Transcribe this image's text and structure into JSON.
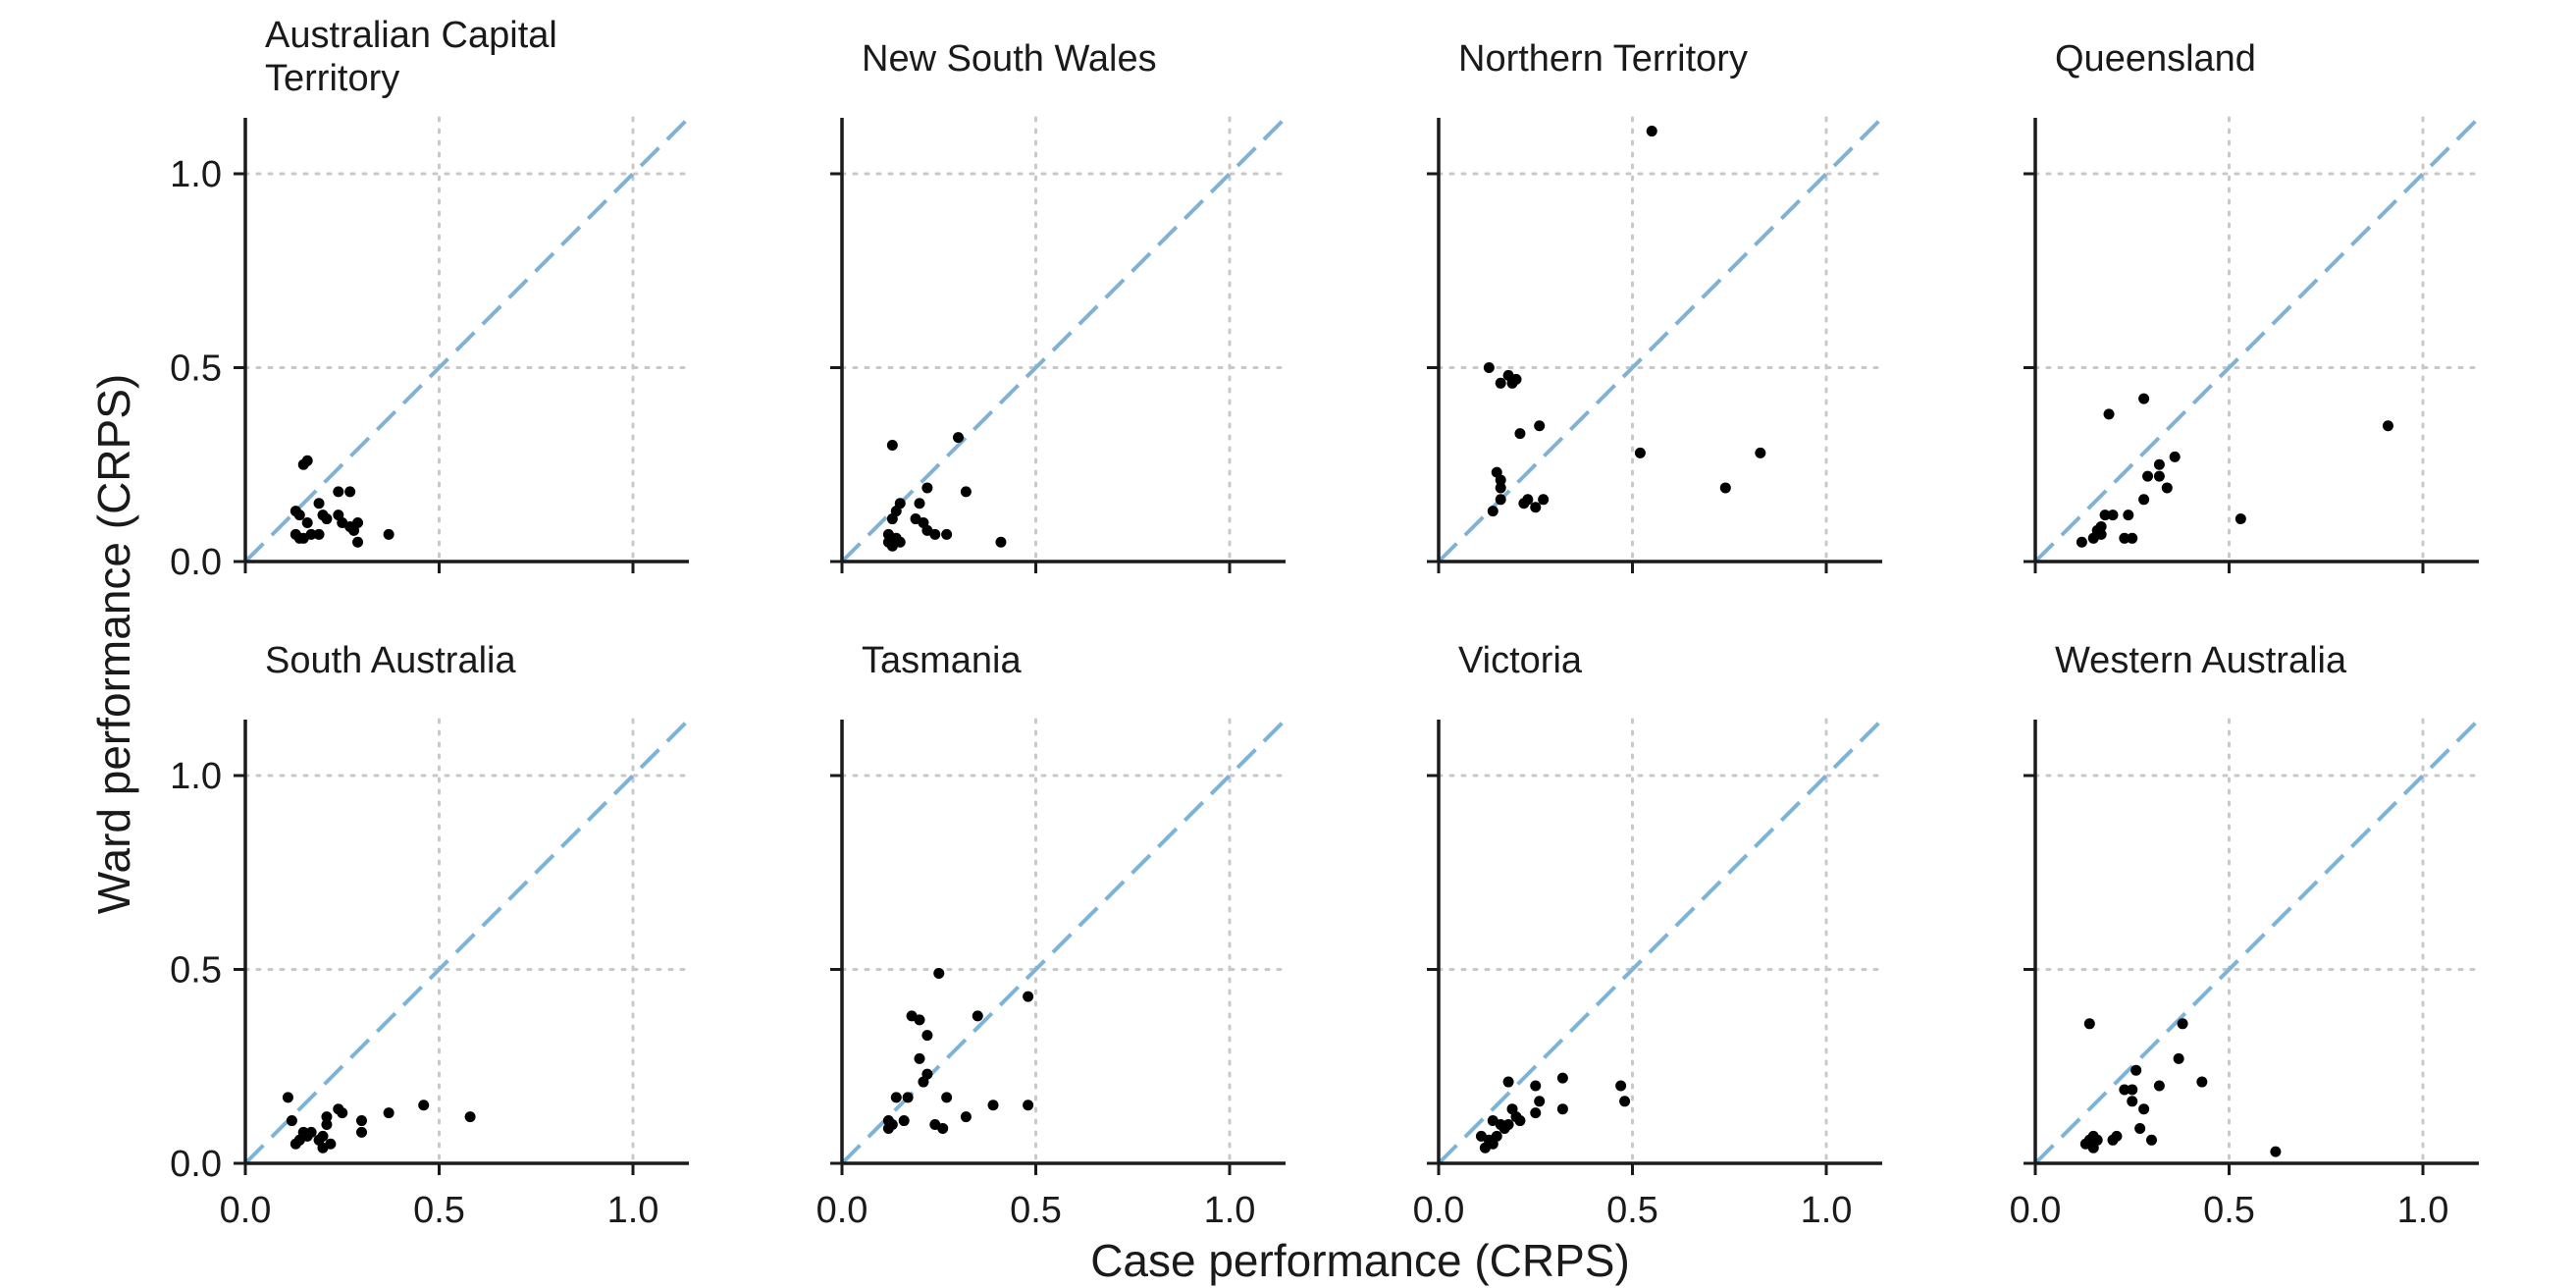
{
  "chart_data": {
    "type": "scatter",
    "xlabel": "Case performance (CRPS)",
    "ylabel": "Ward performance (CRPS)",
    "xlim": [
      0,
      1.15
    ],
    "ylim": [
      0,
      1.15
    ],
    "ticks": [
      0.0,
      0.5,
      1.0
    ],
    "tick_labels": [
      "0.0",
      "0.5",
      "1.0"
    ],
    "grid": "dotted at 0.5 and 1.0",
    "reference_line": "y = x dashed",
    "colors": {
      "points": "#000000",
      "reference_line": "#7fb3d5",
      "grid": "#c8c8c8",
      "axis": "#1a1a1a"
    },
    "panels": [
      {
        "title": "Australian Capital Territory",
        "points": [
          [
            0.13,
            0.13
          ],
          [
            0.15,
            0.25
          ],
          [
            0.16,
            0.26
          ],
          [
            0.14,
            0.12
          ],
          [
            0.16,
            0.1
          ],
          [
            0.19,
            0.15
          ],
          [
            0.2,
            0.12
          ],
          [
            0.21,
            0.11
          ],
          [
            0.24,
            0.18
          ],
          [
            0.27,
            0.18
          ],
          [
            0.24,
            0.12
          ],
          [
            0.25,
            0.1
          ],
          [
            0.27,
            0.09
          ],
          [
            0.29,
            0.1
          ],
          [
            0.28,
            0.08
          ],
          [
            0.13,
            0.07
          ],
          [
            0.15,
            0.06
          ],
          [
            0.17,
            0.07
          ],
          [
            0.19,
            0.07
          ],
          [
            0.29,
            0.05
          ],
          [
            0.37,
            0.07
          ],
          [
            0.14,
            0.06
          ]
        ]
      },
      {
        "title": "New South Wales",
        "points": [
          [
            0.12,
            0.05
          ],
          [
            0.13,
            0.04
          ],
          [
            0.14,
            0.06
          ],
          [
            0.15,
            0.05
          ],
          [
            0.13,
            0.11
          ],
          [
            0.14,
            0.13
          ],
          [
            0.15,
            0.15
          ],
          [
            0.13,
            0.3
          ],
          [
            0.19,
            0.11
          ],
          [
            0.21,
            0.1
          ],
          [
            0.2,
            0.15
          ],
          [
            0.22,
            0.19
          ],
          [
            0.22,
            0.08
          ],
          [
            0.24,
            0.07
          ],
          [
            0.27,
            0.07
          ],
          [
            0.3,
            0.32
          ],
          [
            0.32,
            0.18
          ],
          [
            0.41,
            0.05
          ],
          [
            0.12,
            0.07
          ]
        ]
      },
      {
        "title": "Northern Territory",
        "points": [
          [
            0.13,
            0.5
          ],
          [
            0.16,
            0.46
          ],
          [
            0.18,
            0.48
          ],
          [
            0.19,
            0.46
          ],
          [
            0.2,
            0.47
          ],
          [
            0.21,
            0.33
          ],
          [
            0.26,
            0.35
          ],
          [
            0.15,
            0.23
          ],
          [
            0.16,
            0.21
          ],
          [
            0.16,
            0.19
          ],
          [
            0.14,
            0.13
          ],
          [
            0.16,
            0.16
          ],
          [
            0.22,
            0.15
          ],
          [
            0.23,
            0.16
          ],
          [
            0.25,
            0.14
          ],
          [
            0.27,
            0.16
          ],
          [
            0.52,
            0.28
          ],
          [
            0.55,
            1.11
          ],
          [
            0.74,
            0.19
          ],
          [
            0.83,
            0.28
          ]
        ]
      },
      {
        "title": "Queensland",
        "points": [
          [
            0.12,
            0.05
          ],
          [
            0.15,
            0.06
          ],
          [
            0.16,
            0.08
          ],
          [
            0.17,
            0.07
          ],
          [
            0.18,
            0.12
          ],
          [
            0.2,
            0.12
          ],
          [
            0.19,
            0.38
          ],
          [
            0.23,
            0.06
          ],
          [
            0.24,
            0.12
          ],
          [
            0.25,
            0.06
          ],
          [
            0.28,
            0.16
          ],
          [
            0.28,
            0.42
          ],
          [
            0.29,
            0.22
          ],
          [
            0.32,
            0.22
          ],
          [
            0.32,
            0.25
          ],
          [
            0.34,
            0.19
          ],
          [
            0.36,
            0.27
          ],
          [
            0.53,
            0.11
          ],
          [
            0.91,
            0.35
          ],
          [
            0.17,
            0.09
          ]
        ]
      },
      {
        "title": "South Australia",
        "points": [
          [
            0.11,
            0.17
          ],
          [
            0.12,
            0.11
          ],
          [
            0.13,
            0.05
          ],
          [
            0.14,
            0.06
          ],
          [
            0.15,
            0.08
          ],
          [
            0.16,
            0.07
          ],
          [
            0.17,
            0.08
          ],
          [
            0.2,
            0.07
          ],
          [
            0.2,
            0.04
          ],
          [
            0.21,
            0.1
          ],
          [
            0.21,
            0.12
          ],
          [
            0.24,
            0.14
          ],
          [
            0.25,
            0.13
          ],
          [
            0.3,
            0.11
          ],
          [
            0.3,
            0.08
          ],
          [
            0.37,
            0.13
          ],
          [
            0.46,
            0.15
          ],
          [
            0.58,
            0.12
          ],
          [
            0.19,
            0.06
          ],
          [
            0.22,
            0.05
          ]
        ]
      },
      {
        "title": "Tasmania",
        "points": [
          [
            0.12,
            0.09
          ],
          [
            0.12,
            0.11
          ],
          [
            0.13,
            0.1
          ],
          [
            0.14,
            0.17
          ],
          [
            0.16,
            0.11
          ],
          [
            0.17,
            0.17
          ],
          [
            0.18,
            0.38
          ],
          [
            0.2,
            0.37
          ],
          [
            0.2,
            0.27
          ],
          [
            0.21,
            0.21
          ],
          [
            0.22,
            0.33
          ],
          [
            0.22,
            0.23
          ],
          [
            0.25,
            0.49
          ],
          [
            0.24,
            0.1
          ],
          [
            0.26,
            0.09
          ],
          [
            0.27,
            0.17
          ],
          [
            0.32,
            0.12
          ],
          [
            0.35,
            0.38
          ],
          [
            0.39,
            0.15
          ],
          [
            0.48,
            0.43
          ],
          [
            0.48,
            0.15
          ]
        ]
      },
      {
        "title": "Victoria",
        "points": [
          [
            0.11,
            0.07
          ],
          [
            0.12,
            0.04
          ],
          [
            0.13,
            0.06
          ],
          [
            0.14,
            0.05
          ],
          [
            0.15,
            0.07
          ],
          [
            0.16,
            0.1
          ],
          [
            0.17,
            0.09
          ],
          [
            0.18,
            0.1
          ],
          [
            0.19,
            0.14
          ],
          [
            0.18,
            0.21
          ],
          [
            0.2,
            0.12
          ],
          [
            0.21,
            0.11
          ],
          [
            0.25,
            0.2
          ],
          [
            0.25,
            0.13
          ],
          [
            0.26,
            0.16
          ],
          [
            0.32,
            0.22
          ],
          [
            0.32,
            0.14
          ],
          [
            0.47,
            0.2
          ],
          [
            0.48,
            0.16
          ],
          [
            0.14,
            0.11
          ]
        ]
      },
      {
        "title": "Western Australia",
        "points": [
          [
            0.13,
            0.05
          ],
          [
            0.14,
            0.06
          ],
          [
            0.15,
            0.07
          ],
          [
            0.16,
            0.06
          ],
          [
            0.14,
            0.36
          ],
          [
            0.2,
            0.06
          ],
          [
            0.21,
            0.07
          ],
          [
            0.23,
            0.19
          ],
          [
            0.25,
            0.19
          ],
          [
            0.25,
            0.16
          ],
          [
            0.26,
            0.24
          ],
          [
            0.27,
            0.09
          ],
          [
            0.28,
            0.14
          ],
          [
            0.3,
            0.06
          ],
          [
            0.32,
            0.2
          ],
          [
            0.37,
            0.27
          ],
          [
            0.38,
            0.36
          ],
          [
            0.43,
            0.21
          ],
          [
            0.62,
            0.03
          ],
          [
            0.15,
            0.04
          ]
        ]
      }
    ]
  }
}
